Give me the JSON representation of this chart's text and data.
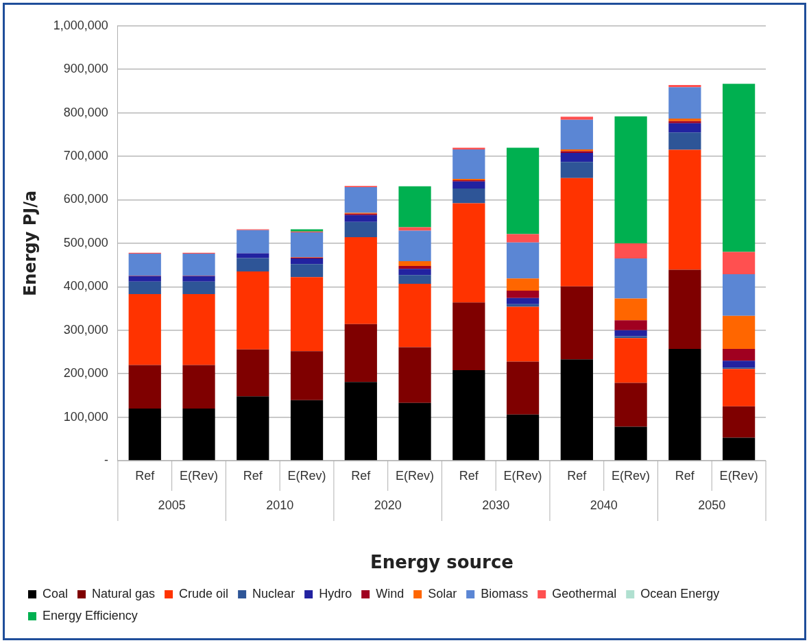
{
  "chart_data": {
    "type": "bar",
    "stacked": true,
    "xlabel": "Energy source",
    "ylabel": "Energy PJ/a",
    "categories": [
      "Ref",
      "E(Rev)",
      "Ref",
      "E(Rev)",
      "Ref",
      "E(Rev)",
      "Ref",
      "E(Rev)",
      "Ref",
      "E(Rev)",
      "Ref",
      "E(Rev)"
    ],
    "annotations": [
      "2005",
      "2010",
      "2020",
      "2030",
      "2040",
      "2050"
    ],
    "series": [
      {
        "name": "Coal",
        "color": "#000000",
        "values": [
          120000,
          120000,
          148000,
          139000,
          181000,
          133000,
          208000,
          106000,
          233000,
          78000,
          257000,
          53000
        ]
      },
      {
        "name": "Natural gas",
        "color": "#7f0000",
        "values": [
          100000,
          100000,
          108000,
          113000,
          133000,
          128000,
          156000,
          122000,
          168000,
          101000,
          182000,
          72000
        ]
      },
      {
        "name": "Crude oil",
        "color": "#ff3300",
        "values": [
          163000,
          163000,
          179000,
          170000,
          200000,
          146000,
          228000,
          126000,
          249000,
          103000,
          276000,
          86000
        ]
      },
      {
        "name": "Nuclear",
        "color": "#2e5597",
        "values": [
          29000,
          29000,
          31000,
          30000,
          35000,
          20000,
          34000,
          6000,
          37000,
          4000,
          40000,
          3000
        ]
      },
      {
        "name": "Hydro",
        "color": "#2222a0",
        "values": [
          12000,
          12000,
          11000,
          13000,
          16000,
          14000,
          16000,
          14000,
          21000,
          14000,
          21000,
          16000
        ]
      },
      {
        "name": "Wind",
        "color": "#a00020",
        "values": [
          1000,
          1000,
          null,
          2000,
          3000,
          7000,
          3000,
          17000,
          4000,
          23000,
          5000,
          27000
        ]
      },
      {
        "name": "Solar",
        "color": "#ff6600",
        "values": [
          0,
          0,
          0,
          1000,
          2000,
          11000,
          3000,
          28000,
          4000,
          50000,
          6000,
          76000
        ]
      },
      {
        "name": "Biomass",
        "color": "#5b86d4",
        "values": [
          51000,
          51000,
          53000,
          57000,
          59000,
          70000,
          68000,
          83000,
          68000,
          92000,
          72000,
          96000
        ]
      },
      {
        "name": "Geothermal",
        "color": "#ff5050",
        "values": [
          2000,
          2000,
          2000,
          2000,
          3000,
          8000,
          4000,
          19000,
          7000,
          35000,
          5000,
          51000
        ]
      },
      {
        "name": "Ocean Energy",
        "color": "#b0e0d0",
        "values": [
          0,
          0,
          0,
          0,
          0,
          0,
          0,
          0,
          0,
          0,
          0,
          0
        ]
      },
      {
        "name": "Energy Efficiency",
        "color": "#00b050",
        "values": [
          0,
          0,
          0,
          5000,
          0,
          94000,
          0,
          199000,
          0,
          292000,
          0,
          387000
        ]
      }
    ],
    "ylim": [
      0,
      1000000
    ],
    "yticks": [
      {
        "value": 0,
        "label": "-"
      },
      {
        "value": 100000,
        "label": "100,000"
      },
      {
        "value": 200000,
        "label": "200,000"
      },
      {
        "value": 300000,
        "label": "300,000"
      },
      {
        "value": 400000,
        "label": "400,000"
      },
      {
        "value": 500000,
        "label": "500,000"
      },
      {
        "value": 600000,
        "label": "600,000"
      },
      {
        "value": 700000,
        "label": "700,000"
      },
      {
        "value": 800000,
        "label": "800,000"
      },
      {
        "value": 900000,
        "label": "900,000"
      },
      {
        "value": 1000000,
        "label": "1,000,000"
      }
    ],
    "grid": "y",
    "legend": "bottom"
  }
}
